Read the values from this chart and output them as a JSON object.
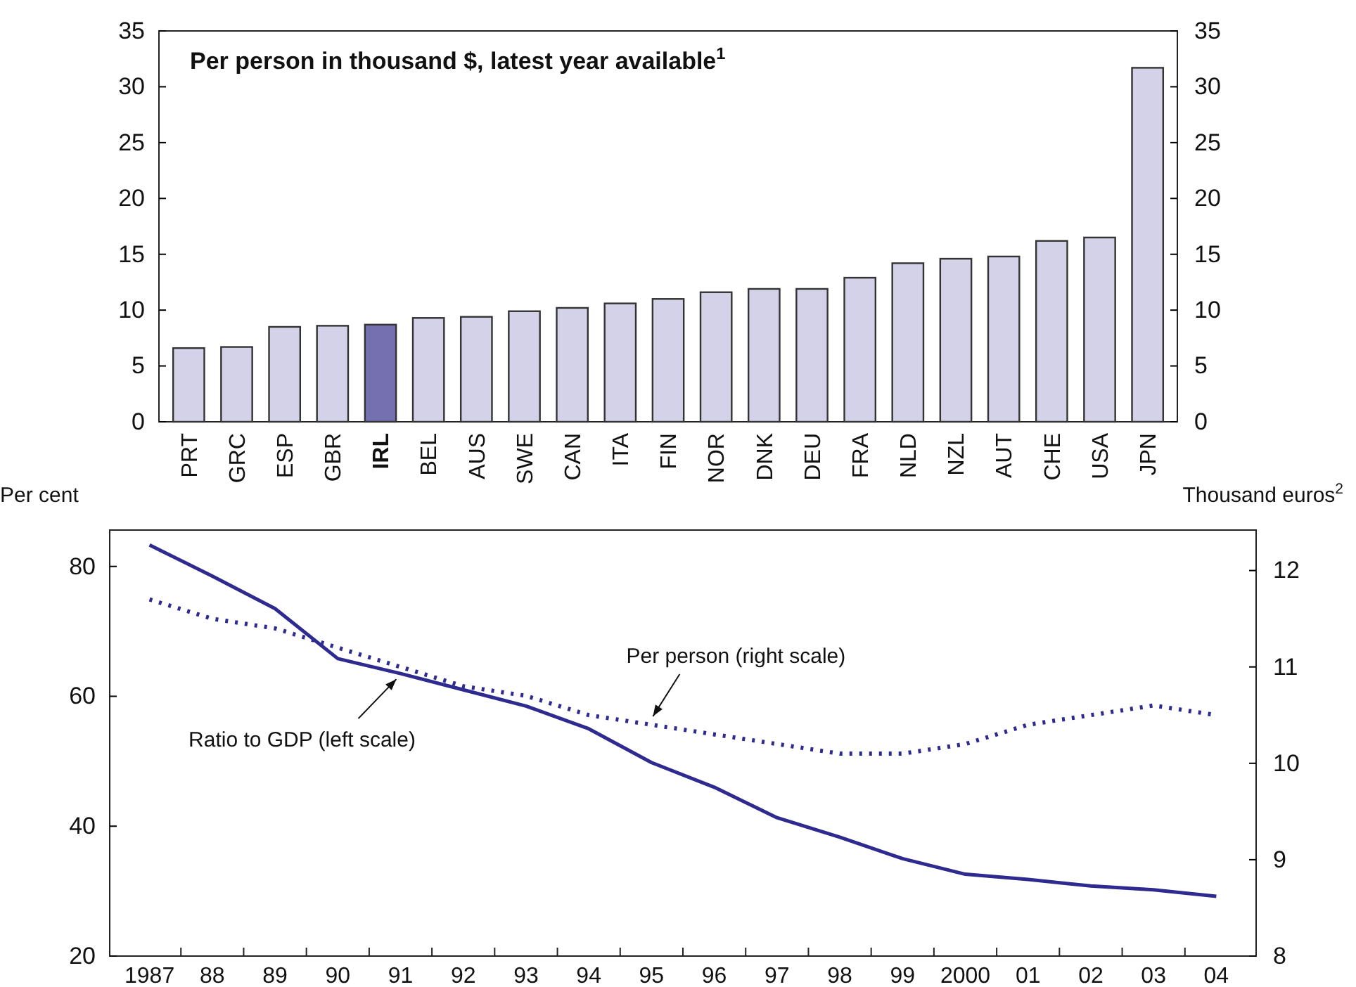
{
  "chart_data": [
    {
      "type": "bar",
      "title": "Per person in thousand $, latest year available$^{1}$",
      "categories": [
        "PRT",
        "GRC",
        "ESP",
        "GBR",
        "IRL",
        "BEL",
        "AUS",
        "SWE",
        "CAN",
        "ITA",
        "FIN",
        "NOR",
        "DNK",
        "DEU",
        "FRA",
        "NLD",
        "NZL",
        "AUT",
        "CHE",
        "USA",
        "JPN"
      ],
      "values": [
        6.6,
        6.7,
        8.5,
        8.6,
        8.7,
        9.3,
        9.4,
        9.9,
        10.2,
        10.6,
        11.0,
        11.6,
        11.9,
        11.9,
        12.9,
        14.2,
        14.6,
        14.8,
        16.2,
        16.5,
        31.7
      ],
      "colors": [
        "#d4d2e8",
        "#d4d2e8",
        "#d4d2e8",
        "#d4d2e8",
        "#7570b0",
        "#d4d2e8",
        "#d4d2e8",
        "#d4d2e8",
        "#d4d2e8",
        "#d4d2e8",
        "#d4d2e8",
        "#d4d2e8",
        "#d4d2e8",
        "#d4d2e8",
        "#d4d2e8",
        "#d4d2e8",
        "#d4d2e8",
        "#d4d2e8",
        "#d4d2e8",
        "#d4d2e8",
        "#d4d2e8"
      ],
      "ylim": [
        0,
        35
      ],
      "yticks": [
        0,
        5,
        10,
        15,
        20,
        25,
        30,
        35
      ],
      "y2lim": [
        0,
        35
      ],
      "y2ticks": [
        0,
        5,
        10,
        15,
        20,
        25,
        30,
        35
      ],
      "grid": false
    },
    {
      "type": "line",
      "ylabel": "Per cent",
      "y2label": "Thousand euros$^{2}$",
      "categories": [
        "1987",
        "88",
        "89",
        "90",
        "91",
        "92",
        "93",
        "94",
        "95",
        "96",
        "97",
        "98",
        "99",
        "2000",
        "01",
        "02",
        "03",
        "04"
      ],
      "series": [
        {
          "name": "Ratio to GDP (left scale)",
          "color": "#2e2a8f",
          "line_style": "solid",
          "values": [
            83.3,
            78.5,
            73.5,
            65.8,
            63.5,
            61.0,
            58.5,
            55.0,
            49.8,
            46.0,
            41.3,
            38.3,
            35.0,
            32.6,
            31.8,
            30.8,
            30.2,
            29.2
          ]
        },
        {
          "name": "Per person (right scale)",
          "color": "#2e2a8f",
          "line_style": "dotted",
          "axis": "y2",
          "values": [
            11.7,
            11.5,
            11.4,
            11.2,
            11.0,
            10.8,
            10.7,
            10.5,
            10.4,
            10.3,
            10.2,
            10.1,
            10.1,
            10.2,
            10.4,
            10.5,
            10.6,
            10.5
          ]
        }
      ],
      "ylim": [
        20,
        85.6
      ],
      "yticks": [
        20,
        40,
        60,
        80
      ],
      "y2lim": [
        8,
        12.42
      ],
      "y2ticks": [
        8,
        9,
        10,
        11,
        12
      ],
      "grid": false,
      "marker": "none"
    }
  ]
}
